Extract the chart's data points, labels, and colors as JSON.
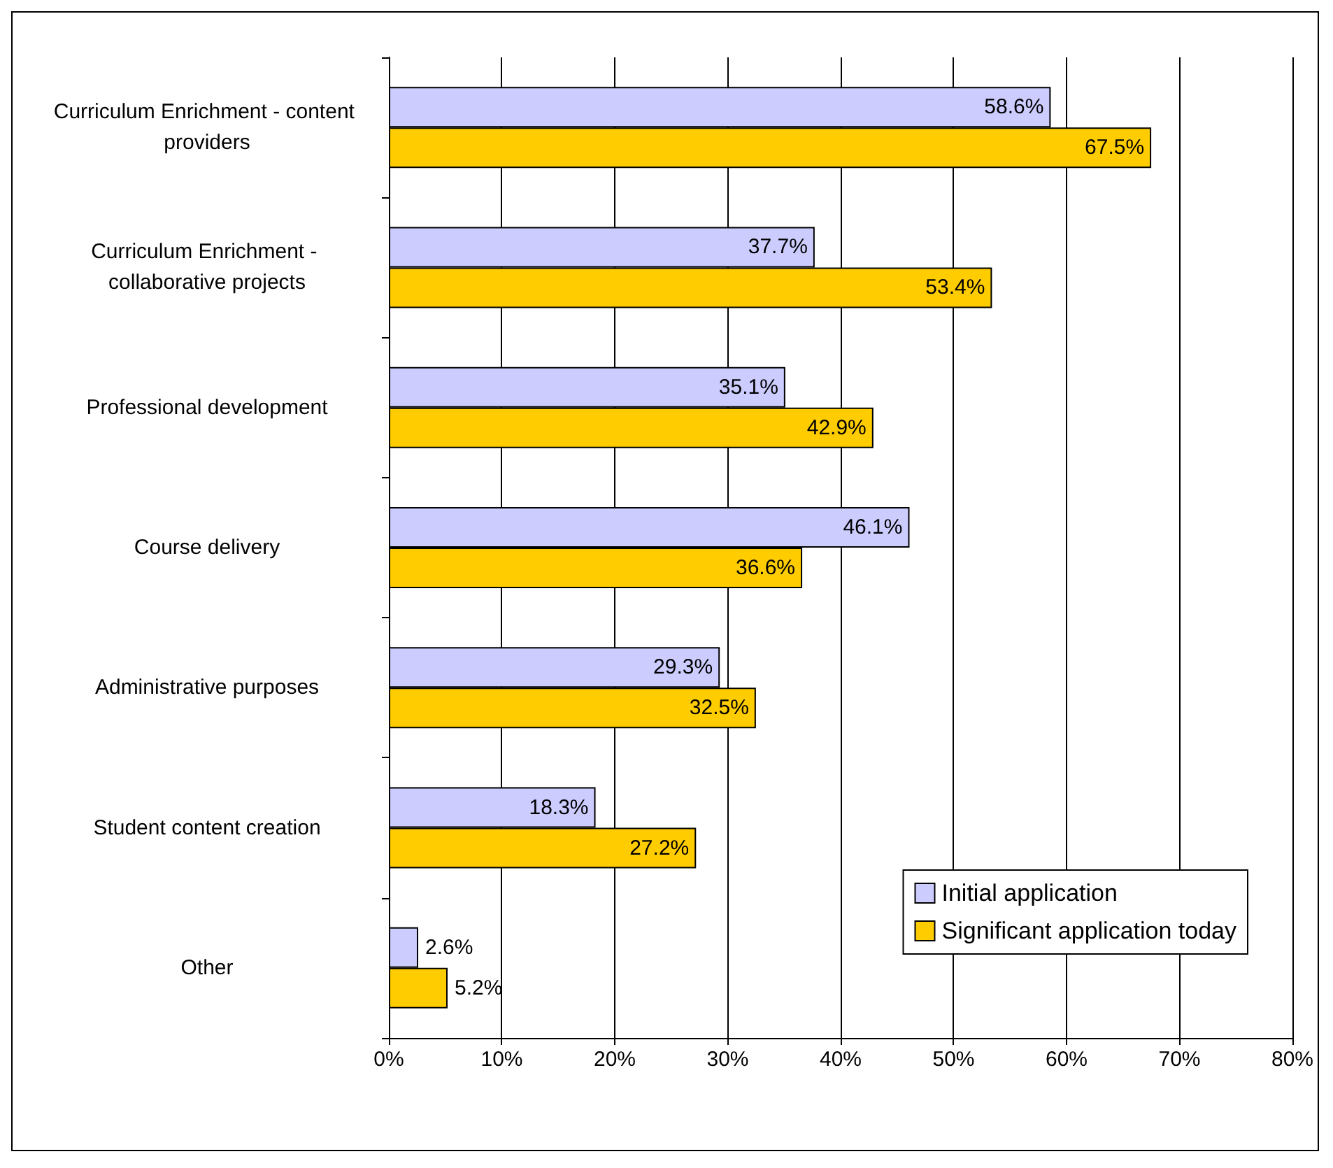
{
  "chart_data": {
    "type": "bar",
    "orientation": "horizontal",
    "categories": [
      "Curriculum Enrichment - content providers",
      "Curriculum Enrichment - collaborative projects",
      "Professional development",
      "Course delivery",
      "Administrative purposes",
      "Student content creation",
      "Other"
    ],
    "series": [
      {
        "name": "Initial application",
        "color": "#ccccff",
        "values": [
          58.6,
          37.7,
          35.1,
          46.1,
          29.3,
          18.3,
          2.6
        ],
        "value_labels": [
          "58.6%",
          "37.7%",
          "35.1%",
          "46.1%",
          "29.3%",
          "18.3%",
          "2.6%"
        ]
      },
      {
        "name": "Significant application today",
        "color": "#ffcc00",
        "values": [
          67.5,
          53.4,
          42.9,
          36.6,
          32.5,
          27.2,
          5.2
        ],
        "value_labels": [
          "67.5%",
          "53.4%",
          "42.9%",
          "36.6%",
          "32.5%",
          "27.2%",
          "5.2%"
        ]
      }
    ],
    "xlim": [
      0,
      80
    ],
    "xticks": [
      {
        "value": 0,
        "label": "0%"
      },
      {
        "value": 10,
        "label": "10%"
      },
      {
        "value": 20,
        "label": "20%"
      },
      {
        "value": 30,
        "label": "30%"
      },
      {
        "value": 40,
        "label": "40%"
      },
      {
        "value": 50,
        "label": "50%"
      },
      {
        "value": 60,
        "label": "60%"
      },
      {
        "value": 70,
        "label": "70%"
      },
      {
        "value": 80,
        "label": "80%"
      }
    ],
    "grid": "x",
    "legend": "bottom right"
  }
}
